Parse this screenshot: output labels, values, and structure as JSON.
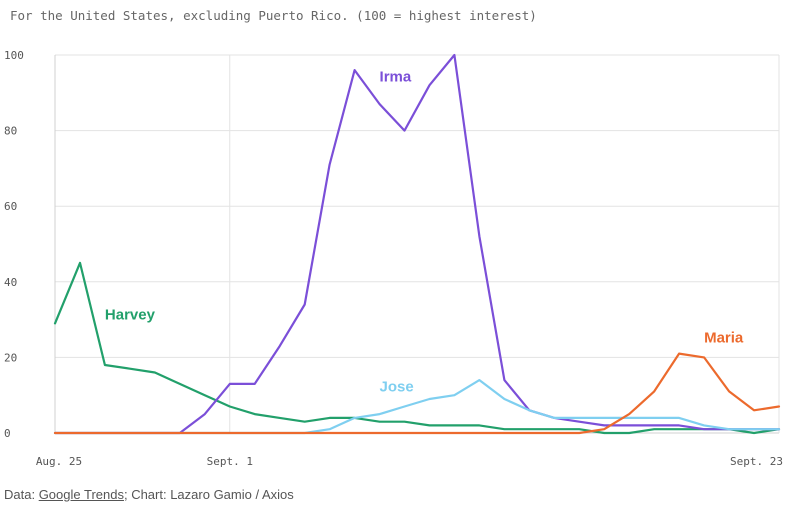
{
  "header": {
    "subtitle": "For the United States, excluding Puerto Rico. (100 = highest interest)"
  },
  "footer": {
    "prefix": "Data: ",
    "link_text": "Google Trends",
    "suffix": "; Chart: Lazaro Gamio / Axios"
  },
  "chart_data": {
    "type": "line",
    "title": "",
    "subtitle": "For the United States, excluding Puerto Rico. (100 = highest interest)",
    "xlabel": "",
    "ylabel": "",
    "ylim": [
      0,
      100
    ],
    "yticks": [
      0,
      20,
      40,
      60,
      80,
      100
    ],
    "grid": true,
    "x_range": [
      "2017-08-25",
      "2017-09-23"
    ],
    "x_ticks": [
      {
        "date": "2017-08-25",
        "label": "Aug. 25"
      },
      {
        "date": "2017-09-01",
        "label": "Sept. 1"
      },
      {
        "date": "2017-09-23",
        "label": "Sept. 23"
      }
    ],
    "x": [
      "2017-08-25",
      "2017-08-26",
      "2017-08-27",
      "2017-08-28",
      "2017-08-29",
      "2017-08-30",
      "2017-08-31",
      "2017-09-01",
      "2017-09-02",
      "2017-09-03",
      "2017-09-04",
      "2017-09-05",
      "2017-09-06",
      "2017-09-07",
      "2017-09-08",
      "2017-09-09",
      "2017-09-10",
      "2017-09-11",
      "2017-09-12",
      "2017-09-13",
      "2017-09-14",
      "2017-09-15",
      "2017-09-16",
      "2017-09-17",
      "2017-09-18",
      "2017-09-19",
      "2017-09-20",
      "2017-09-21",
      "2017-09-22",
      "2017-09-23"
    ],
    "series": [
      {
        "name": "Harvey",
        "color": "#22a06b",
        "label_at": {
          "date": "2017-08-27",
          "value": 30
        },
        "values": [
          29,
          45,
          18,
          17,
          16,
          13,
          10,
          7,
          5,
          4,
          3,
          4,
          4,
          3,
          3,
          2,
          2,
          2,
          1,
          1,
          1,
          1,
          0,
          0,
          1,
          1,
          1,
          1,
          0,
          1
        ]
      },
      {
        "name": "Irma",
        "color": "#7b4fd8",
        "label_at": {
          "date": "2017-09-07",
          "value": 93
        },
        "values": [
          0,
          0,
          0,
          0,
          0,
          0,
          5,
          13,
          13,
          23,
          34,
          71,
          96,
          87,
          80,
          92,
          100,
          52,
          14,
          6,
          4,
          3,
          2,
          2,
          2,
          2,
          1,
          1,
          1,
          1
        ]
      },
      {
        "name": "Jose",
        "color": "#7fcff0",
        "label_at": {
          "date": "2017-09-07",
          "value": 11
        },
        "values": [
          0,
          0,
          0,
          0,
          0,
          0,
          0,
          0,
          0,
          0,
          0,
          1,
          4,
          5,
          7,
          9,
          10,
          14,
          9,
          6,
          4,
          4,
          4,
          4,
          4,
          4,
          2,
          1,
          1,
          1
        ]
      },
      {
        "name": "Maria",
        "color": "#ec6a2d",
        "label_at": {
          "date": "2017-09-20",
          "value": 24
        },
        "values": [
          0,
          0,
          0,
          0,
          0,
          0,
          0,
          0,
          0,
          0,
          0,
          0,
          0,
          0,
          0,
          0,
          0,
          0,
          0,
          0,
          0,
          0,
          1,
          5,
          11,
          21,
          20,
          11,
          6,
          7
        ]
      }
    ]
  }
}
